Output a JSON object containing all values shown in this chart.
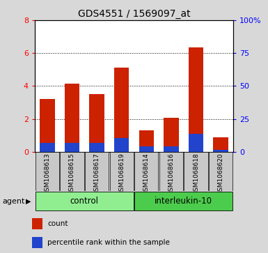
{
  "title": "GDS4551 / 1569097_at",
  "samples": [
    "GSM1068613",
    "GSM1068615",
    "GSM1068617",
    "GSM1068619",
    "GSM1068614",
    "GSM1068616",
    "GSM1068618",
    "GSM1068620"
  ],
  "count_values": [
    3.2,
    4.15,
    3.5,
    5.1,
    1.3,
    2.05,
    6.35,
    0.9
  ],
  "percentile_values": [
    0.55,
    0.55,
    0.55,
    0.85,
    0.35,
    0.35,
    1.1,
    0.1
  ],
  "groups": [
    {
      "label": "control",
      "start": 0,
      "end": 4,
      "color": "#90ee90"
    },
    {
      "label": "interleukin-10",
      "start": 4,
      "end": 8,
      "color": "#4ccc4c"
    }
  ],
  "bar_color": "#cc2200",
  "percentile_color": "#2244cc",
  "ylim_left": [
    0,
    8
  ],
  "ylim_right": [
    0,
    100
  ],
  "yticks_left": [
    0,
    2,
    4,
    6,
    8
  ],
  "yticks_right": [
    0,
    25,
    50,
    75,
    100
  ],
  "ytick_labels_right": [
    "0",
    "25",
    "50",
    "75",
    "100%"
  ],
  "background_color": "#d8d8d8",
  "plot_bg_color": "#ffffff",
  "legend_items": [
    {
      "label": "count",
      "color": "#cc2200"
    },
    {
      "label": "percentile rank within the sample",
      "color": "#2244cc"
    }
  ],
  "agent_label": "agent",
  "bar_width": 0.6,
  "fig_width": 3.85,
  "fig_height": 3.63,
  "dpi": 100
}
